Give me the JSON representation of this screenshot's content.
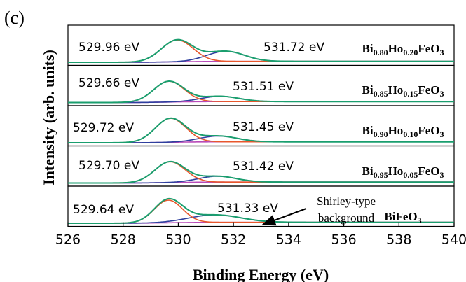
{
  "panel_label": "(c)",
  "chart_data": {
    "type": "line",
    "title": "",
    "xlabel": "Binding Energy (eV)",
    "ylabel": "Intensity (arb. units)",
    "xlim": [
      526,
      540
    ],
    "x_ticks": [
      526,
      528,
      530,
      532,
      534,
      536,
      538,
      540
    ],
    "grid": false,
    "layout": "stacked-offset",
    "components": {
      "envelope_color": "#1a9e6e",
      "main_peak_color": "#e8572c",
      "secondary_peak_color": "#2e3f9e",
      "background_color": "#b84bb8"
    },
    "spectra": [
      {
        "composition": {
          "base": "Bi",
          "a": "0.80",
          "dopant": "Ho",
          "b": "0.20",
          "rest": "FeO",
          "c": "3"
        },
        "peak1_label": "529.96 eV",
        "peak1_center": 529.96,
        "peak1_height": 0.82,
        "peak1_fwhm": 1.35,
        "peak2_label": "531.72 eV",
        "peak2_center": 531.72,
        "peak2_height": 0.38,
        "peak2_fwhm": 1.6
      },
      {
        "composition": {
          "base": "Bi",
          "a": "0.85",
          "dopant": "Ho",
          "b": "0.15",
          "rest": "FeO",
          "c": "3"
        },
        "peak1_label": "529.66 eV",
        "peak1_center": 529.66,
        "peak1_height": 0.78,
        "peak1_fwhm": 1.3,
        "peak2_label": "531.51 eV",
        "peak2_center": 531.51,
        "peak2_height": 0.2,
        "peak2_fwhm": 1.6
      },
      {
        "composition": {
          "base": "Bi",
          "a": "0.90",
          "dopant": "Ho",
          "b": "0.10",
          "rest": "FeO",
          "c": "3"
        },
        "peak1_label": "529.72 eV",
        "peak1_center": 529.72,
        "peak1_height": 0.9,
        "peak1_fwhm": 1.3,
        "peak2_label": "531.45 eV",
        "peak2_center": 531.45,
        "peak2_height": 0.22,
        "peak2_fwhm": 1.6
      },
      {
        "composition": {
          "base": "Bi",
          "a": "0.95",
          "dopant": "Ho",
          "b": "0.05",
          "rest": "FeO",
          "c": "3"
        },
        "peak1_label": "529.70 eV",
        "peak1_center": 529.7,
        "peak1_height": 0.78,
        "peak1_fwhm": 1.3,
        "peak2_label": "531.42 eV",
        "peak2_center": 531.42,
        "peak2_height": 0.22,
        "peak2_fwhm": 1.6
      },
      {
        "composition": {
          "base": "BiFeO",
          "a": "",
          "dopant": "",
          "b": "",
          "rest": "",
          "c": "3"
        },
        "peak1_label": "529.64 eV",
        "peak1_center": 529.64,
        "peak1_height": 0.85,
        "peak1_fwhm": 1.2,
        "peak2_label": "531.33 eV",
        "peak2_center": 531.33,
        "peak2_height": 0.28,
        "peak2_fwhm": 2.2
      }
    ],
    "annotation": {
      "line1": "Shirley-type",
      "line2": "background"
    }
  }
}
